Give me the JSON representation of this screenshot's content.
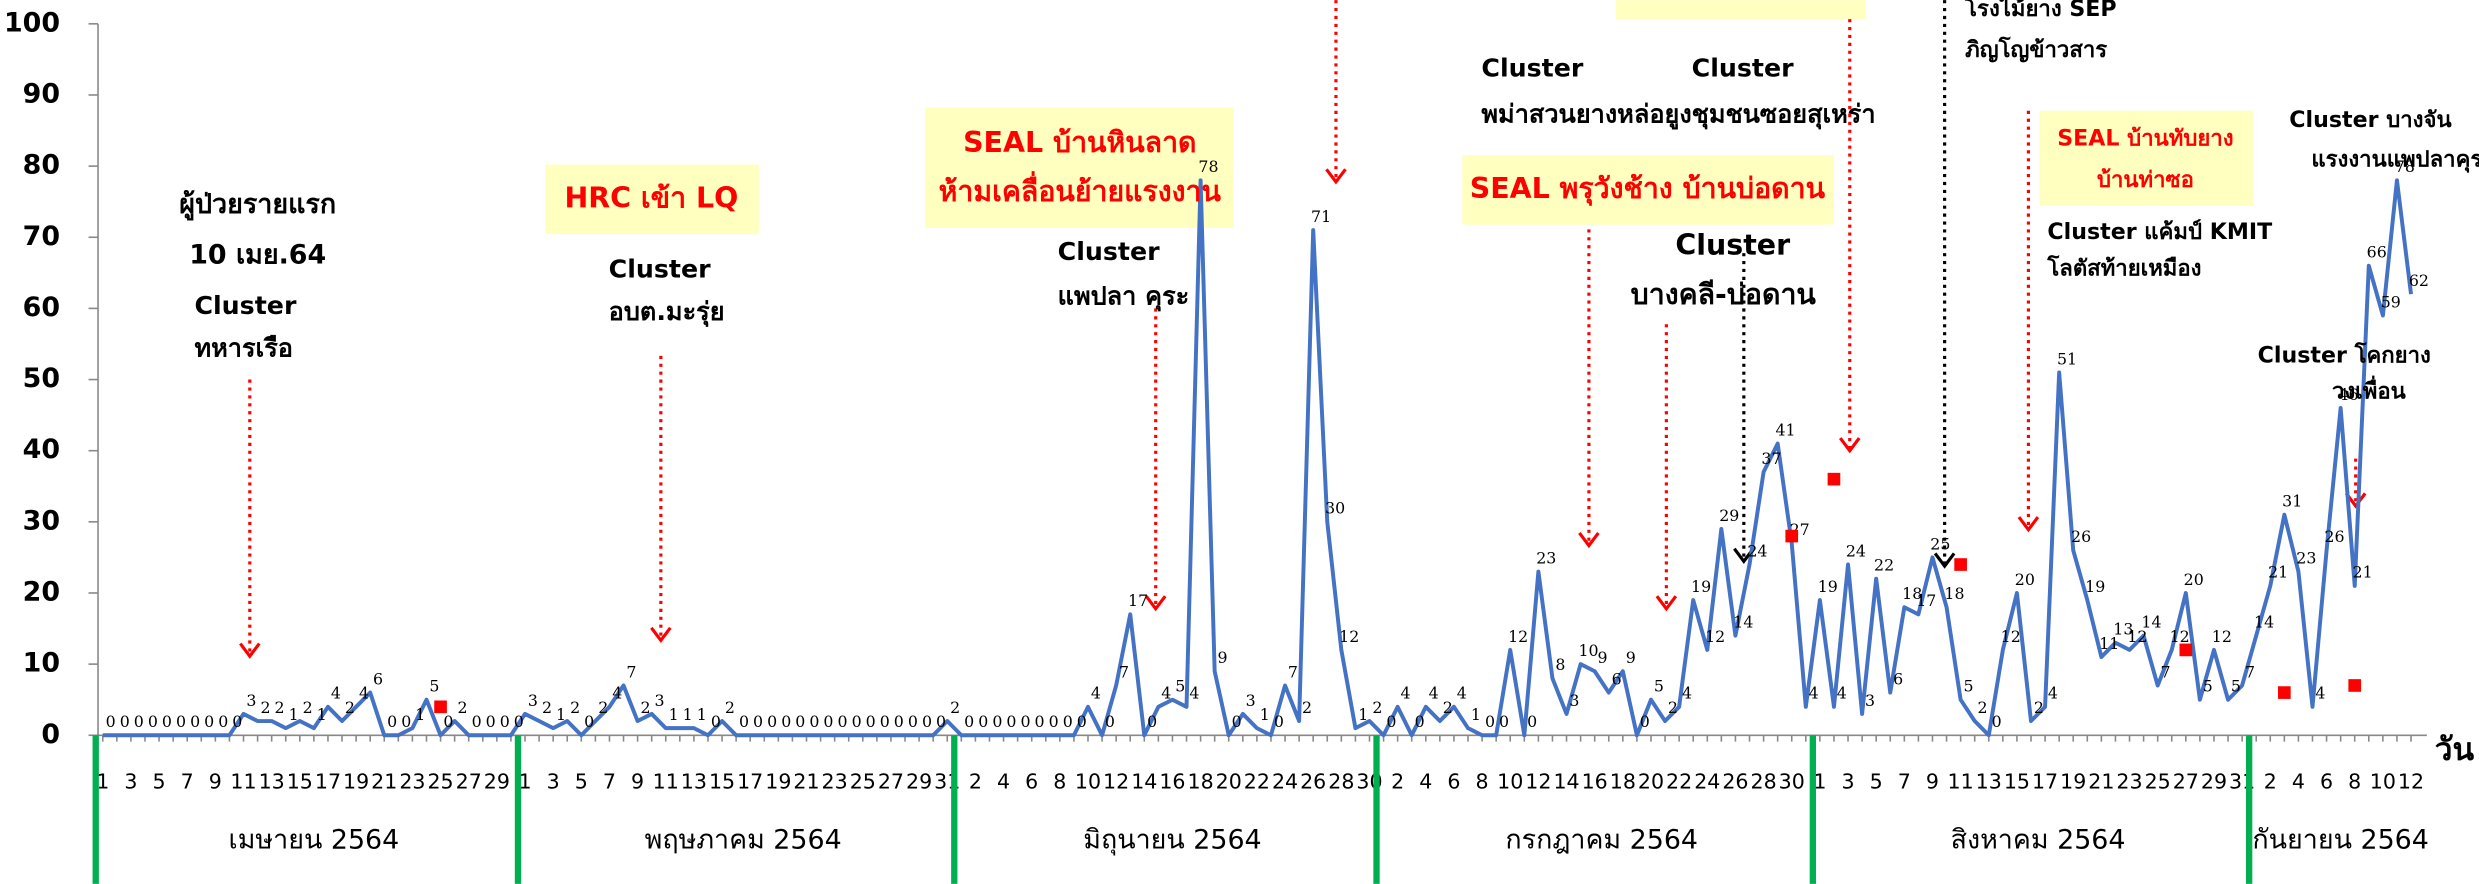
{
  "chart_data": {
    "type": "line",
    "x_label": "วัน",
    "categories": [
      1,
      null,
      3,
      null,
      5,
      null,
      7,
      null,
      9,
      null,
      11,
      null,
      13,
      null,
      15,
      null,
      17,
      null,
      19,
      null,
      21,
      null,
      23,
      null,
      25,
      null,
      27,
      null,
      29,
      null,
      1,
      null,
      3,
      null,
      5,
      null,
      7,
      null,
      9,
      null,
      11,
      null,
      13,
      null,
      15,
      null,
      17,
      null,
      19,
      null,
      21,
      null,
      23,
      null,
      25,
      null,
      27,
      null,
      29,
      null,
      31,
      null,
      2,
      null,
      4,
      null,
      6,
      null,
      8,
      null,
      10,
      null,
      12,
      null,
      14,
      null,
      16,
      null,
      18,
      null,
      20,
      null,
      22,
      null,
      24,
      null,
      26,
      null,
      28,
      null,
      30,
      null,
      2,
      null,
      4,
      null,
      6,
      null,
      8,
      null,
      10,
      null,
      12,
      null,
      14,
      null,
      16,
      null,
      18,
      null,
      20,
      null,
      22,
      null,
      24,
      null,
      26,
      null,
      28,
      null,
      30,
      null,
      1,
      null,
      3,
      null,
      5,
      null,
      7,
      null,
      9,
      null,
      11,
      null,
      13,
      null,
      15,
      null,
      17,
      null,
      19,
      null,
      21,
      null,
      23,
      null,
      25,
      null,
      27,
      null,
      29,
      null,
      31,
      null,
      2,
      null,
      4,
      null,
      6,
      null,
      8,
      null,
      10,
      null,
      12
    ],
    "values": [
      0,
      0,
      0,
      0,
      0,
      0,
      0,
      0,
      0,
      0,
      3,
      2,
      2,
      1,
      2,
      1,
      4,
      2,
      4,
      6,
      0,
      0,
      1,
      5,
      0,
      2,
      0,
      0,
      0,
      0,
      3,
      2,
      1,
      2,
      0,
      2,
      4,
      7,
      2,
      3,
      1,
      1,
      1,
      0,
      2,
      0,
      0,
      0,
      0,
      0,
      0,
      0,
      0,
      0,
      0,
      0,
      0,
      0,
      0,
      0,
      2,
      0,
      0,
      0,
      0,
      0,
      0,
      0,
      0,
      0,
      4,
      0,
      7,
      17,
      0,
      4,
      5,
      4,
      78,
      9,
      0,
      3,
      1,
      0,
      7,
      2,
      71,
      30,
      12,
      1,
      2,
      0,
      4,
      0,
      4,
      2,
      4,
      1,
      0,
      0,
      12,
      0,
      23,
      8,
      3,
      10,
      9,
      6,
      9,
      0,
      5,
      2,
      4,
      19,
      12,
      29,
      14,
      24,
      37,
      41,
      27,
      4,
      19,
      4,
      24,
      3,
      22,
      6,
      18,
      17,
      25,
      18,
      5,
      2,
      0,
      12,
      20,
      2,
      4,
      51,
      26,
      19,
      11,
      13,
      12,
      14,
      7,
      12,
      20,
      5,
      12,
      5,
      7,
      14,
      21,
      31,
      23,
      4,
      26,
      46,
      21,
      66,
      59,
      78,
      62
    ],
    "color": "#4472c4",
    "months": [
      "เมษายน 2564",
      "พฤษภาคม 2564",
      "มิถุนายน 2564",
      "กรกฎาคม 2564",
      "สิงหาคม 2564",
      "กันยายน 2564"
    ],
    "month_separator_color": "#00b050",
    "markers": {
      "color": "#ff0000",
      "points": [
        {
          "index": 24,
          "value": 4
        },
        {
          "index": 120,
          "value": 28
        },
        {
          "index": 123,
          "value": 36
        },
        {
          "index": 132,
          "value": 24
        },
        {
          "index": 148,
          "value": 12
        },
        {
          "index": 155,
          "value": 6
        },
        {
          "index": 160,
          "value": 7
        }
      ]
    },
    "ylim": [
      0,
      100
    ],
    "yticks": [
      0,
      10,
      20,
      30,
      40,
      50,
      60,
      70,
      80,
      90,
      100
    ],
    "grid": false,
    "annotations": [
      {
        "lines": [
          "ผู้ป่วยรายแรก",
          "10 เมย.64"
        ],
        "color": "#000000"
      },
      {
        "lines": [
          "Cluster",
          "ทหารเรือ"
        ],
        "color": "#000000"
      },
      {
        "lines": [
          "HRC เข้า LQ"
        ],
        "color": "#ff0000"
      },
      {
        "lines": [
          "Cluster",
          "อบต.มะรุ่ย"
        ],
        "color": "#000000"
      },
      {
        "lines": [
          "SEAL  บ้านหินลาด",
          "ห้ามเคลื่อนย้ายแรงงาน"
        ],
        "color": "#ff0000"
      },
      {
        "lines": [
          "Cluster",
          "แพปลา คุระ"
        ],
        "color": "#000000"
      },
      {
        "lines": [
          "Cluster",
          "พม่าสวนยางหล่อยูง"
        ],
        "color": "#000000"
      },
      {
        "lines": [
          "Cluster",
          "ชุมชนซอยสุเหร่า"
        ],
        "color": "#000000"
      },
      {
        "lines": [
          "SEAL พรุวังช้าง บ้านบ่อดาน"
        ],
        "color": "#ff0000"
      },
      {
        "lines": [
          "Cluster",
          "บางคลี-บ่อดาน"
        ],
        "color": "#000000"
      },
      {
        "lines": [
          "โรงไม้ยาง SEP",
          "ภิญโญข้าวสาร"
        ],
        "color": "#000000"
      },
      {
        "lines": [
          "SEAL บ้านทับยาง",
          "บ้านท่าซอ"
        ],
        "color": "#ff0000"
      },
      {
        "lines": [
          "Cluster แค้มป์ KMIT",
          "โลตัสท้ายเหมือง"
        ],
        "color": "#000000"
      },
      {
        "lines": [
          "Cluster บางจัน",
          "แรงงานแพปลาคุระ"
        ],
        "color": "#000000"
      },
      {
        "lines": [
          "Cluster โคกยาง",
          "วงเพื่อน"
        ],
        "color": "#000000"
      }
    ]
  }
}
